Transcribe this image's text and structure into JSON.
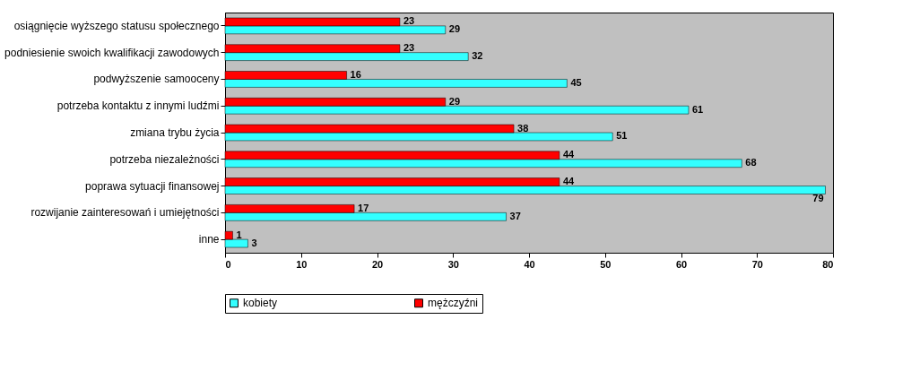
{
  "chart_data": {
    "type": "bar",
    "orientation": "horizontal",
    "categories": [
      "osiągnięcie wyższego statusu społecznego",
      "podniesienie swoich kwalifikacji zawodowych",
      "podwyższenie samooceny",
      "potrzeba kontaktu z innymi ludźmi",
      "zmiana trybu życia",
      "potrzeba niezależności",
      "poprawa sytuacji finansowej",
      "rozwijanie zainteresowań i umiejętności",
      "inne"
    ],
    "series": [
      {
        "name": "kobiety",
        "color": "#33ffff",
        "values": [
          29,
          32,
          45,
          61,
          51,
          68,
          79,
          37,
          3
        ]
      },
      {
        "name": "mężczyźni",
        "color": "#ff0000",
        "values": [
          23,
          23,
          16,
          29,
          38,
          44,
          44,
          17,
          1
        ]
      }
    ],
    "xlim": [
      0,
      80
    ],
    "xticks": [
      0,
      10,
      20,
      30,
      40,
      50,
      60,
      70,
      80
    ],
    "data_labels": true,
    "legend": "bottom",
    "grid": false
  }
}
